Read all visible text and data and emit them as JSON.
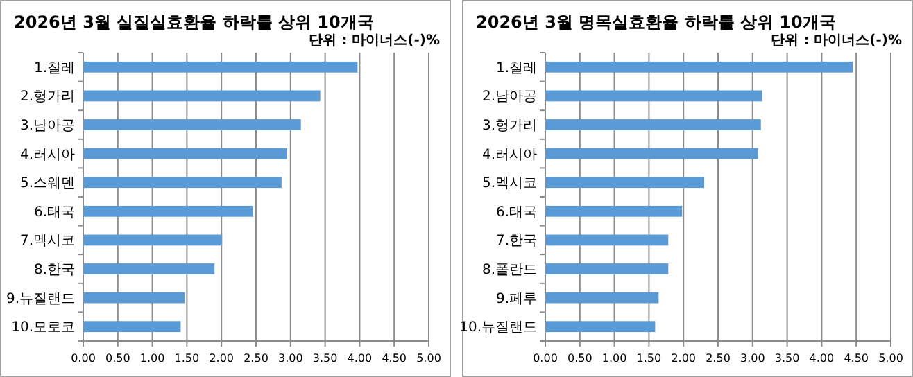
{
  "chart_data": [
    {
      "type": "bar",
      "orientation": "horizontal",
      "title": "2026년 3월 실질실효환율 하락률 상위 10개국",
      "subtitle": "단위 : 마이너스(-)%",
      "categories": [
        "1.칠레",
        "2.헝가리",
        "3.남아공",
        "4.러시아",
        "5.스웨덴",
        "6.태국",
        "7.멕시코",
        "8.한국",
        "9.뉴질랜드",
        "10.모로코"
      ],
      "values": [
        3.97,
        3.43,
        3.15,
        2.95,
        2.87,
        2.46,
        2.01,
        1.9,
        1.47,
        1.41
      ],
      "color": "#5b9bd5",
      "xlim": [
        0,
        5
      ],
      "xticks": [
        {
          "value": 0,
          "label": "0.00"
        },
        {
          "value": 0.5,
          "label": "0.50"
        },
        {
          "value": 1,
          "label": "1.00"
        },
        {
          "value": 1.5,
          "label": "1.50"
        },
        {
          "value": 2,
          "label": "2.00"
        },
        {
          "value": 2.5,
          "label": "2.50"
        },
        {
          "value": 3,
          "label": "3.00"
        },
        {
          "value": 3.5,
          "label": "3.50"
        },
        {
          "value": 4,
          "label": "4.00"
        },
        {
          "value": 4.5,
          "label": "4.50"
        },
        {
          "value": 5,
          "label": "5.00"
        }
      ],
      "grid": "x"
    },
    {
      "type": "bar",
      "orientation": "horizontal",
      "title": "2026년 3월 명목실효환율 하락률 상위 10개국",
      "subtitle": "단위 : 마이너스(-)%",
      "categories": [
        "1.칠레",
        "2.남아공",
        "3.헝가리",
        "4.러시아",
        "5.멕시코",
        "6.태국",
        "7.한국",
        "8.폴란드",
        "9.페루",
        "10.뉴질랜드"
      ],
      "values": [
        4.45,
        3.14,
        3.12,
        3.08,
        2.3,
        1.98,
        1.78,
        1.78,
        1.64,
        1.59
      ],
      "color": "#5b9bd5",
      "xlim": [
        0,
        5
      ],
      "xticks": [
        {
          "value": 0,
          "label": "0.00"
        },
        {
          "value": 0.5,
          "label": "0.50"
        },
        {
          "value": 1,
          "label": "1.00"
        },
        {
          "value": 1.5,
          "label": "1.50"
        },
        {
          "value": 2,
          "label": "2.00"
        },
        {
          "value": 2.5,
          "label": "2.50"
        },
        {
          "value": 3,
          "label": "3.00"
        },
        {
          "value": 3.5,
          "label": "3.50"
        },
        {
          "value": 4,
          "label": "4.00"
        },
        {
          "value": 4.5,
          "label": "4.50"
        },
        {
          "value": 5,
          "label": "5.00"
        }
      ],
      "grid": "x"
    }
  ]
}
